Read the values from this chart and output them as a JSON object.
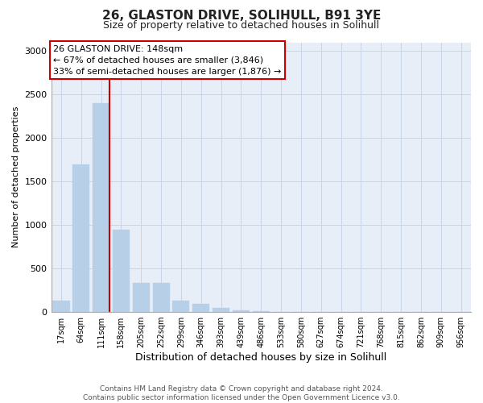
{
  "title1": "26, GLASTON DRIVE, SOLIHULL, B91 3YE",
  "title2": "Size of property relative to detached houses in Solihull",
  "xlabel": "Distribution of detached houses by size in Solihull",
  "ylabel": "Number of detached properties",
  "categories": [
    "17sqm",
    "64sqm",
    "111sqm",
    "158sqm",
    "205sqm",
    "252sqm",
    "299sqm",
    "346sqm",
    "393sqm",
    "439sqm",
    "486sqm",
    "533sqm",
    "580sqm",
    "627sqm",
    "674sqm",
    "721sqm",
    "768sqm",
    "815sqm",
    "862sqm",
    "909sqm",
    "956sqm"
  ],
  "values": [
    130,
    1700,
    2400,
    950,
    330,
    330,
    130,
    90,
    50,
    20,
    10,
    5,
    3,
    0,
    0,
    0,
    0,
    0,
    0,
    0,
    0
  ],
  "bar_color": "#b8cfe8",
  "bar_edge_color": "#b8cfe8",
  "vline_color": "#cc0000",
  "vline_x_index": 2,
  "annotation_text": "26 GLASTON DRIVE: 148sqm\n← 67% of detached houses are smaller (3,846)\n33% of semi-detached houses are larger (1,876) →",
  "annotation_box_color": "#ffffff",
  "annotation_box_edge": "#cc0000",
  "ylim": [
    0,
    3100
  ],
  "yticks": [
    0,
    500,
    1000,
    1500,
    2000,
    2500,
    3000
  ],
  "grid_color": "#c8d4e8",
  "bg_color": "#e8eef8",
  "footer": "Contains HM Land Registry data © Crown copyright and database right 2024.\nContains public sector information licensed under the Open Government Licence v3.0.",
  "title1_fontsize": 11,
  "title2_fontsize": 9,
  "xlabel_fontsize": 9,
  "ylabel_fontsize": 8,
  "ytick_fontsize": 8,
  "xtick_fontsize": 7,
  "annotation_fontsize": 8,
  "footer_fontsize": 6.5
}
